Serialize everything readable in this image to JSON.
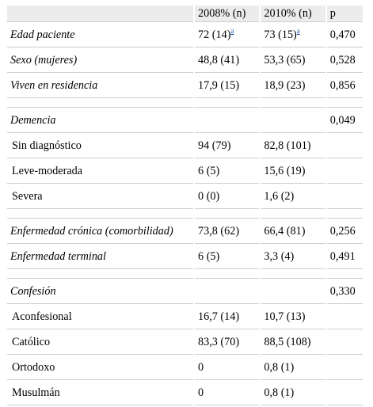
{
  "header": {
    "col1": "",
    "col2": "2008% (n)",
    "col3": "2010% (n)",
    "col4": "p"
  },
  "rows": {
    "edad": {
      "label": "Edad paciente",
      "v2008": "72 (14)",
      "sup2008": "a",
      "v2010": "73 (15)",
      "sup2010": "a",
      "p": "0,470"
    },
    "sexo": {
      "label": "Sexo (mujeres)",
      "v2008": "48,8 (41)",
      "v2010": "53,3 (65)",
      "p": "0,528"
    },
    "viven": {
      "label": "Viven en residencia",
      "v2008": "17,9 (15)",
      "v2010": "18,9 (23)",
      "p": "0,856"
    },
    "demencia": {
      "label": "Demencia",
      "p": "0,049"
    },
    "sindiag": {
      "label": "Sin diagnóstico",
      "v2008": "94 (79)",
      "v2010": "82,8 (101)"
    },
    "leve": {
      "label": "Leve-moderada",
      "v2008": "6 (5)",
      "v2010": "15,6 (19)"
    },
    "severa": {
      "label": "Severa",
      "v2008": "0 (0)",
      "v2010": "1,6 (2)"
    },
    "cronica": {
      "label": "Enfermedad crónica (comorbilidad)",
      "v2008": "73,8 (62)",
      "v2010": "66,4 (81)",
      "p": "0,256"
    },
    "terminal": {
      "label": "Enfermedad terminal",
      "v2008": "6 (5)",
      "v2010": "3,3 (4)",
      "p": "0,491"
    },
    "confesion": {
      "label": "Confesión",
      "p": "0,330"
    },
    "aconfesional": {
      "label": "Aconfesional",
      "v2008": "16,7 (14)",
      "v2010": "10,7 (13)"
    },
    "catolico": {
      "label": "Católico",
      "v2008": "83,3 (70)",
      "v2010": "88,5 (108)"
    },
    "ortodoxo": {
      "label": "Ortodoxo",
      "v2008": "0",
      "v2010": "0,8 (1)"
    },
    "musulman": {
      "label": "Musulmán",
      "v2008": "0",
      "v2010": "0,8 (1)"
    }
  }
}
